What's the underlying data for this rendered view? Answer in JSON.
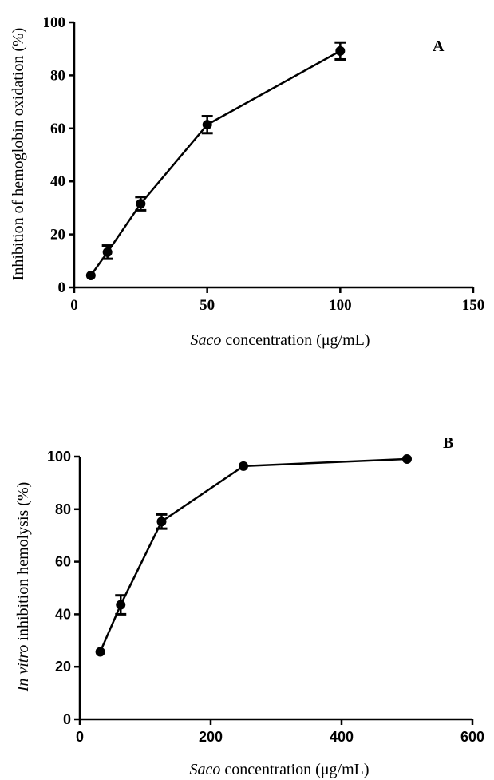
{
  "chart_data": [
    {
      "type": "line",
      "panel_label": "A",
      "xlabel_italic": "Saco",
      "xlabel_rest": " concentration (μg/mL)",
      "ylabel": "Inhibition of hemoglobin oxidation (%)",
      "xlim": [
        0,
        150
      ],
      "ylim": [
        0,
        100
      ],
      "xticks": [
        0,
        50,
        100,
        150
      ],
      "yticks": [
        0,
        20,
        40,
        60,
        80,
        100
      ],
      "grid": false,
      "series": [
        {
          "x": [
            6.25,
            12.5,
            25,
            50,
            100
          ],
          "y": [
            4.5,
            13.3,
            31.6,
            61.4,
            89.2
          ],
          "err": [
            0,
            2.5,
            2.5,
            3.2,
            3.2
          ]
        }
      ]
    },
    {
      "type": "line",
      "panel_label": "B",
      "xlabel_italic": "Saco",
      "xlabel_rest": " concentration (μg/mL)",
      "ylabel_italic": "In vitro",
      "ylabel_rest": " inhibition hemolysis (%)",
      "xlim": [
        0,
        600
      ],
      "ylim": [
        0,
        100
      ],
      "xticks": [
        0,
        200,
        400,
        600
      ],
      "yticks": [
        0,
        20,
        40,
        60,
        80,
        100
      ],
      "grid": false,
      "series": [
        {
          "x": [
            31.25,
            62.5,
            125,
            250,
            500
          ],
          "y": [
            25.7,
            43.6,
            75.3,
            96.4,
            99.1
          ],
          "err": [
            0,
            3.6,
            2.7,
            0,
            0
          ]
        }
      ]
    }
  ]
}
